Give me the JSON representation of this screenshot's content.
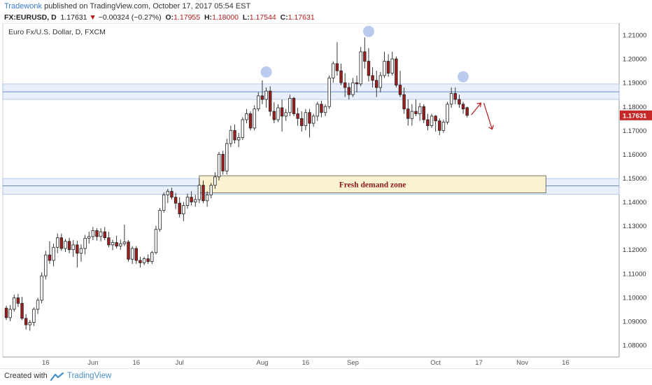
{
  "header": {
    "author": "Tradewonk",
    "published": " published on TradingView.com, October 17, 2017 05:54 EST",
    "symbol": "FX:EURUSD, D",
    "last": "1.17631",
    "change": "−0.00324 (−0.27%)",
    "o_label": "O:",
    "o_val": "1.17955",
    "h_label": "H:",
    "h_val": "1.18000",
    "l_label": "L:",
    "l_val": "1.17544",
    "c_label": "C:",
    "c_val": "1.17631"
  },
  "footer": {
    "created": "Created with",
    "brand": "TradingView"
  },
  "chart_data": {
    "type": "candlestick",
    "title": "Euro Fx/U.S. Dollar, D, FXCM",
    "ylim": [
      1.075,
      1.215
    ],
    "y_ticks": [
      "1.21000",
      "1.20000",
      "1.19000",
      "1.18000",
      "1.17000",
      "1.16000",
      "1.15000",
      "1.14000",
      "1.13000",
      "1.12000",
      "1.11000",
      "1.10000",
      "1.09000",
      "1.08000"
    ],
    "y_tick_values": [
      1.21,
      1.2,
      1.19,
      1.18,
      1.17,
      1.16,
      1.15,
      1.14,
      1.13,
      1.12,
      1.11,
      1.1,
      1.09,
      1.08
    ],
    "x_ticks": [
      {
        "label": "16",
        "idx": 10
      },
      {
        "label": "Jun",
        "idx": 22
      },
      {
        "label": "16",
        "idx": 33
      },
      {
        "label": "Jul",
        "idx": 44
      },
      {
        "label": "Aug",
        "idx": 65
      },
      {
        "label": "16",
        "idx": 76
      },
      {
        "label": "Sep",
        "idx": 88
      },
      {
        "label": "Oct",
        "idx": 109
      },
      {
        "label": "17",
        "idx": 120
      },
      {
        "label": "Nov",
        "idx": 131
      },
      {
        "label": "16",
        "idx": 142
      }
    ],
    "last_price_label": "1.17631",
    "last_price": 1.17631,
    "up_color": "#ffffff",
    "down_color": "#a11d1d",
    "resistance_zone": [
      1.183,
      1.1895
    ],
    "resistance_line": 1.1862,
    "support_zone": [
      1.1432,
      1.1498
    ],
    "support_line": 1.1468,
    "demand_zone": {
      "label": "Fresh demand zone",
      "y1": 1.1438,
      "y2": 1.151,
      "start_idx": 49,
      "end_idx": 137
    },
    "peak_markers": [
      {
        "idx": 66,
        "price": 1.1945
      },
      {
        "idx": 92,
        "price": 1.2115
      },
      {
        "idx": 116,
        "price": 1.1925
      }
    ],
    "candles": [
      [
        1.0955,
        1.0965,
        1.0905,
        1.0915
      ],
      [
        1.0915,
        1.0968,
        1.09,
        1.095
      ],
      [
        1.095,
        1.1012,
        1.094,
        1.0998
      ],
      [
        1.0998,
        1.1015,
        1.096,
        1.0975
      ],
      [
        1.0975,
        1.1002,
        1.0905,
        1.0912
      ],
      [
        1.0912,
        1.093,
        1.0865,
        1.0885
      ],
      [
        1.0885,
        1.0905,
        1.086,
        1.0895
      ],
      [
        1.0895,
        1.0958,
        1.088,
        1.095
      ],
      [
        1.095,
        1.0998,
        1.093,
        1.0988
      ],
      [
        1.0988,
        1.1105,
        1.0975,
        1.109
      ],
      [
        1.109,
        1.1195,
        1.1075,
        1.1178
      ],
      [
        1.1178,
        1.1235,
        1.114,
        1.1155
      ],
      [
        1.1155,
        1.1225,
        1.113,
        1.121
      ],
      [
        1.121,
        1.1268,
        1.1185,
        1.125
      ],
      [
        1.125,
        1.1268,
        1.1195,
        1.1205
      ],
      [
        1.1205,
        1.1245,
        1.119,
        1.1235
      ],
      [
        1.1235,
        1.125,
        1.1185,
        1.12
      ],
      [
        1.12,
        1.124,
        1.117,
        1.122
      ],
      [
        1.122,
        1.1238,
        1.1125,
        1.1185
      ],
      [
        1.1185,
        1.1222,
        1.115,
        1.1205
      ],
      [
        1.1205,
        1.1262,
        1.118,
        1.1248
      ],
      [
        1.1248,
        1.1275,
        1.1225,
        1.1255
      ],
      [
        1.1255,
        1.1295,
        1.124,
        1.128
      ],
      [
        1.128,
        1.129,
        1.1238,
        1.1255
      ],
      [
        1.1255,
        1.129,
        1.1235,
        1.1275
      ],
      [
        1.1275,
        1.1295,
        1.124,
        1.125
      ],
      [
        1.125,
        1.1275,
        1.121,
        1.122
      ],
      [
        1.122,
        1.1242,
        1.1198,
        1.123
      ],
      [
        1.123,
        1.1258,
        1.1205,
        1.1215
      ],
      [
        1.1215,
        1.1242,
        1.12,
        1.1225
      ],
      [
        1.1225,
        1.1305,
        1.1215,
        1.1232
      ],
      [
        1.1232,
        1.124,
        1.115,
        1.116
      ],
      [
        1.116,
        1.1215,
        1.114,
        1.1205
      ],
      [
        1.1205,
        1.1215,
        1.114,
        1.1155
      ],
      [
        1.1155,
        1.117,
        1.1125,
        1.1145
      ],
      [
        1.1145,
        1.117,
        1.1135,
        1.1162
      ],
      [
        1.1162,
        1.118,
        1.114,
        1.115
      ],
      [
        1.115,
        1.1195,
        1.114,
        1.1188
      ],
      [
        1.1188,
        1.13,
        1.118,
        1.1285
      ],
      [
        1.1285,
        1.1375,
        1.1275,
        1.1365
      ],
      [
        1.1365,
        1.144,
        1.1355,
        1.143
      ],
      [
        1.143,
        1.1455,
        1.1395,
        1.1445
      ],
      [
        1.1445,
        1.146,
        1.141,
        1.142
      ],
      [
        1.142,
        1.1438,
        1.137,
        1.1395
      ],
      [
        1.1395,
        1.142,
        1.1335,
        1.135
      ],
      [
        1.135,
        1.14,
        1.132,
        1.1385
      ],
      [
        1.1385,
        1.1435,
        1.1372,
        1.142
      ],
      [
        1.142,
        1.1445,
        1.1385,
        1.14
      ],
      [
        1.14,
        1.143,
        1.138,
        1.141
      ],
      [
        1.141,
        1.15,
        1.1395,
        1.147
      ],
      [
        1.147,
        1.149,
        1.1395,
        1.1405
      ],
      [
        1.1405,
        1.1445,
        1.138,
        1.143
      ],
      [
        1.143,
        1.148,
        1.1415,
        1.147
      ],
      [
        1.147,
        1.1525,
        1.1455,
        1.1505
      ],
      [
        1.1505,
        1.161,
        1.149,
        1.16
      ],
      [
        1.16,
        1.1615,
        1.1515,
        1.153
      ],
      [
        1.153,
        1.1665,
        1.1515,
        1.1645
      ],
      [
        1.1645,
        1.172,
        1.163,
        1.17
      ],
      [
        1.17,
        1.1725,
        1.1645,
        1.166
      ],
      [
        1.166,
        1.169,
        1.163,
        1.167
      ],
      [
        1.167,
        1.1755,
        1.166,
        1.1745
      ],
      [
        1.1745,
        1.179,
        1.173,
        1.177
      ],
      [
        1.177,
        1.178,
        1.17,
        1.171
      ],
      [
        1.171,
        1.1805,
        1.17,
        1.179
      ],
      [
        1.179,
        1.186,
        1.178,
        1.1845
      ],
      [
        1.1845,
        1.191,
        1.181,
        1.183
      ],
      [
        1.183,
        1.188,
        1.1795,
        1.1865
      ],
      [
        1.1865,
        1.1885,
        1.176,
        1.178
      ],
      [
        1.178,
        1.1818,
        1.173,
        1.1745
      ],
      [
        1.1745,
        1.181,
        1.1735,
        1.1795
      ],
      [
        1.1795,
        1.183,
        1.1695,
        1.176
      ],
      [
        1.176,
        1.179,
        1.174,
        1.1775
      ],
      [
        1.1775,
        1.185,
        1.176,
        1.1835
      ],
      [
        1.1835,
        1.184,
        1.176,
        1.177
      ],
      [
        1.177,
        1.1795,
        1.172,
        1.175
      ],
      [
        1.175,
        1.178,
        1.1695,
        1.172
      ],
      [
        1.172,
        1.179,
        1.17,
        1.1775
      ],
      [
        1.1775,
        1.179,
        1.167,
        1.173
      ],
      [
        1.173,
        1.177,
        1.1715,
        1.176
      ],
      [
        1.176,
        1.182,
        1.174,
        1.181
      ],
      [
        1.181,
        1.1825,
        1.1755,
        1.1775
      ],
      [
        1.1775,
        1.181,
        1.176,
        1.18
      ],
      [
        1.18,
        1.193,
        1.179,
        1.192
      ],
      [
        1.192,
        1.199,
        1.19,
        1.198
      ],
      [
        1.198,
        1.207,
        1.193,
        1.195
      ],
      [
        1.195,
        1.198,
        1.189,
        1.19
      ],
      [
        1.19,
        1.194,
        1.184,
        1.188
      ],
      [
        1.188,
        1.19,
        1.183,
        1.185
      ],
      [
        1.185,
        1.192,
        1.184,
        1.19
      ],
      [
        1.19,
        1.193,
        1.186,
        1.1895
      ],
      [
        1.1895,
        1.205,
        1.1885,
        1.203
      ],
      [
        1.203,
        1.209,
        1.196,
        1.199
      ],
      [
        1.199,
        1.2045,
        1.1905,
        1.193
      ],
      [
        1.193,
        1.1965,
        1.188,
        1.191
      ],
      [
        1.191,
        1.195,
        1.184,
        1.188
      ],
      [
        1.188,
        1.1945,
        1.186,
        1.193
      ],
      [
        1.193,
        1.203,
        1.192,
        1.199
      ],
      [
        1.199,
        1.202,
        1.1925,
        1.194
      ],
      [
        1.194,
        1.203,
        1.193,
        1.2
      ],
      [
        1.2,
        1.201,
        1.188,
        1.189
      ],
      [
        1.189,
        1.195,
        1.184,
        1.185
      ],
      [
        1.185,
        1.188,
        1.177,
        1.179
      ],
      [
        1.179,
        1.183,
        1.172,
        1.175
      ],
      [
        1.175,
        1.181,
        1.172,
        1.178
      ],
      [
        1.178,
        1.183,
        1.176,
        1.177
      ],
      [
        1.177,
        1.1815,
        1.174,
        1.18
      ],
      [
        1.18,
        1.181,
        1.173,
        1.1745
      ],
      [
        1.1745,
        1.177,
        1.17,
        1.172
      ],
      [
        1.172,
        1.177,
        1.171,
        1.176
      ],
      [
        1.176,
        1.1765,
        1.1695,
        1.174
      ],
      [
        1.174,
        1.175,
        1.168,
        1.17
      ],
      [
        1.17,
        1.1745,
        1.169,
        1.1735
      ],
      [
        1.1735,
        1.182,
        1.1725,
        1.181
      ],
      [
        1.181,
        1.188,
        1.1795,
        1.1855
      ],
      [
        1.1855,
        1.188,
        1.181,
        1.183
      ],
      [
        1.183,
        1.185,
        1.1795,
        1.181
      ],
      [
        1.181,
        1.182,
        1.177,
        1.179
      ],
      [
        1.17955,
        1.18,
        1.17544,
        1.17631
      ]
    ]
  }
}
